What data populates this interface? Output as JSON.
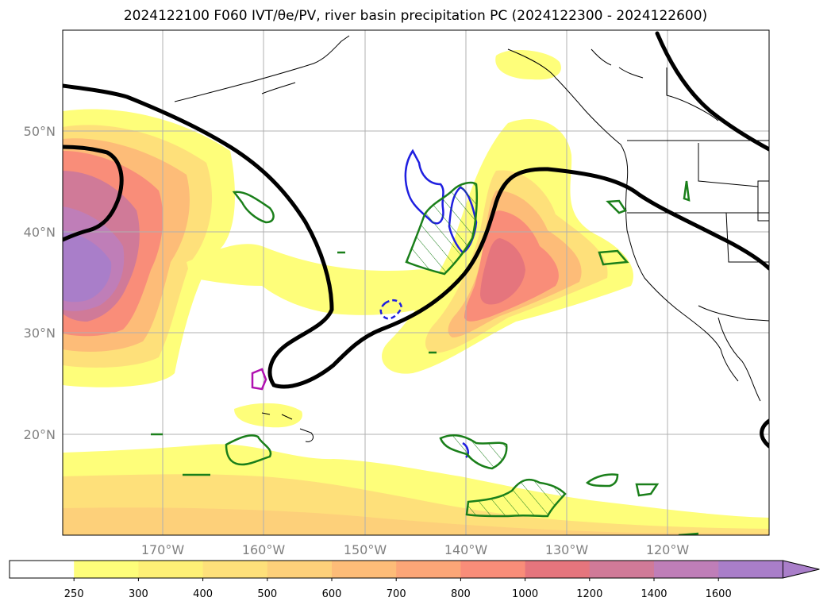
{
  "title": "2024122100 F060 IVT/θe/PV, river basin precipitation PC (2024122300 - 2024122600)",
  "map": {
    "lat_labels": [
      "50°N",
      "40°N",
      "30°N",
      "20°N"
    ],
    "lon_labels": [
      "170°W",
      "160°W",
      "150°W",
      "140°W",
      "130°W",
      "120°W"
    ]
  },
  "colorbar": {
    "levels": [
      "250",
      "300",
      "400",
      "500",
      "600",
      "700",
      "800",
      "1000",
      "1200",
      "1400",
      "1600"
    ],
    "colors": [
      "#ffffff",
      "#fefe7a",
      "#fef076",
      "#fee07a",
      "#fdd07a",
      "#fdbc78",
      "#fca677",
      "#f98d79",
      "#e5757d",
      "#d07a98",
      "#bf7eb8",
      "#a97ec9"
    ]
  }
}
